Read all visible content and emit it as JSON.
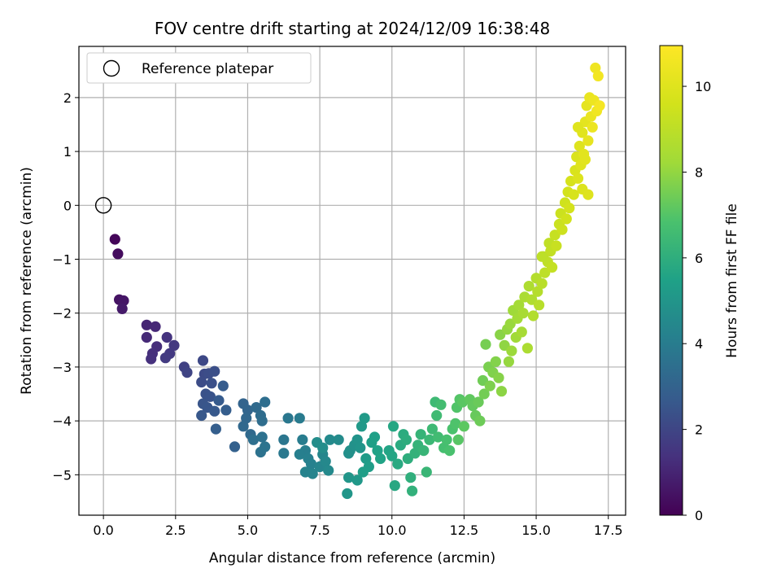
{
  "chart_data": {
    "type": "scatter",
    "title": "FOV centre drift starting at 2024/12/09 16:38:48",
    "xlabel": "Angular distance from reference (arcmin)",
    "ylabel": "Rotation from reference (arcmin)",
    "colorbar_label": "Hours from first FF file",
    "xlim": [
      -0.85,
      18.1
    ],
    "ylim": [
      -5.75,
      2.95
    ],
    "clim": [
      0,
      10.95
    ],
    "x_ticks": [
      0.0,
      2.5,
      5.0,
      7.5,
      10.0,
      12.5,
      15.0,
      17.5
    ],
    "x_tick_labels": [
      "0.0",
      "2.5",
      "5.0",
      "7.5",
      "10.0",
      "12.5",
      "15.0",
      "17.5"
    ],
    "y_ticks": [
      2,
      1,
      0,
      -1,
      -2,
      -3,
      -4,
      -5
    ],
    "y_tick_labels": [
      "2",
      "1",
      "0",
      "−1",
      "−2",
      "−3",
      "−4",
      "−5"
    ],
    "colorbar_ticks": [
      0,
      2,
      4,
      6,
      8,
      10
    ],
    "colorbar_tick_labels": [
      "0",
      "2",
      "4",
      "6",
      "8",
      "10"
    ],
    "colormap": "viridis",
    "grid": true,
    "legend": {
      "location": "top-left",
      "entries": [
        "Reference platepar"
      ]
    },
    "reference_point": {
      "label": "Reference platepar",
      "x": 0.0,
      "y": 0.0,
      "marker": "open-circle",
      "color": "#000000"
    },
    "series": [
      {
        "points": [
          [
            0.4,
            -0.63,
            0.15
          ],
          [
            0.5,
            -0.9,
            0.3
          ],
          [
            0.55,
            -1.75,
            0.5
          ],
          [
            0.7,
            -1.77,
            0.6
          ],
          [
            0.65,
            -1.92,
            0.7
          ],
          [
            1.5,
            -2.22,
            1.0
          ],
          [
            1.8,
            -2.25,
            1.1
          ],
          [
            1.5,
            -2.45,
            1.15
          ],
          [
            1.85,
            -2.62,
            1.25
          ],
          [
            1.7,
            -2.75,
            1.3
          ],
          [
            1.65,
            -2.85,
            1.35
          ],
          [
            2.2,
            -2.45,
            1.45
          ],
          [
            2.45,
            -2.6,
            1.55
          ],
          [
            2.3,
            -2.75,
            1.6
          ],
          [
            2.15,
            -2.83,
            1.65
          ],
          [
            2.8,
            -3.0,
            1.85
          ],
          [
            2.9,
            -3.1,
            1.95
          ],
          [
            3.45,
            -2.88,
            2.1
          ],
          [
            3.5,
            -3.13,
            2.15
          ],
          [
            3.4,
            -3.28,
            2.2
          ],
          [
            3.65,
            -3.12,
            2.25
          ],
          [
            3.85,
            -3.08,
            2.3
          ],
          [
            3.75,
            -3.3,
            2.35
          ],
          [
            3.55,
            -3.5,
            2.4
          ],
          [
            3.7,
            -3.55,
            2.45
          ],
          [
            3.45,
            -3.68,
            2.5
          ],
          [
            3.6,
            -3.75,
            2.55
          ],
          [
            3.4,
            -3.9,
            2.6
          ],
          [
            3.85,
            -3.82,
            2.65
          ],
          [
            4.0,
            -3.62,
            2.7
          ],
          [
            4.15,
            -3.35,
            2.75
          ],
          [
            4.25,
            -3.8,
            2.8
          ],
          [
            3.9,
            -4.15,
            2.85
          ],
          [
            4.55,
            -4.48,
            2.95
          ],
          [
            4.85,
            -3.68,
            3.05
          ],
          [
            5.0,
            -3.8,
            3.1
          ],
          [
            4.95,
            -3.95,
            3.15
          ],
          [
            4.85,
            -4.1,
            3.2
          ],
          [
            5.1,
            -4.25,
            3.25
          ],
          [
            5.3,
            -3.75,
            3.3
          ],
          [
            5.45,
            -3.9,
            3.35
          ],
          [
            5.5,
            -4.0,
            3.4
          ],
          [
            5.6,
            -3.65,
            3.45
          ],
          [
            5.2,
            -4.35,
            3.5
          ],
          [
            5.5,
            -4.3,
            3.55
          ],
          [
            5.45,
            -4.58,
            3.6
          ],
          [
            5.6,
            -4.48,
            3.65
          ],
          [
            6.25,
            -4.35,
            3.75
          ],
          [
            6.4,
            -3.95,
            3.8
          ],
          [
            6.25,
            -4.6,
            3.85
          ],
          [
            6.8,
            -3.95,
            3.95
          ],
          [
            6.9,
            -4.35,
            4.0
          ],
          [
            7.0,
            -4.55,
            4.05
          ],
          [
            6.8,
            -4.62,
            4.1
          ],
          [
            7.1,
            -4.7,
            4.15
          ],
          [
            7.2,
            -4.8,
            4.2
          ],
          [
            7.0,
            -4.95,
            4.25
          ],
          [
            7.25,
            -4.98,
            4.3
          ],
          [
            7.5,
            -4.85,
            4.35
          ],
          [
            7.6,
            -4.62,
            4.4
          ],
          [
            7.7,
            -4.75,
            4.45
          ],
          [
            7.8,
            -4.92,
            4.5
          ],
          [
            7.85,
            -4.35,
            4.55
          ],
          [
            8.15,
            -4.35,
            4.6
          ],
          [
            7.4,
            -4.4,
            4.65
          ],
          [
            7.6,
            -4.5,
            4.7
          ],
          [
            8.5,
            -4.6,
            4.75
          ],
          [
            8.55,
            -4.55,
            4.8
          ],
          [
            8.7,
            -4.45,
            4.85
          ],
          [
            8.8,
            -4.35,
            4.9
          ],
          [
            8.9,
            -4.5,
            4.95
          ],
          [
            8.5,
            -5.05,
            5.0
          ],
          [
            8.45,
            -5.35,
            5.05
          ],
          [
            8.8,
            -5.1,
            5.1
          ],
          [
            8.95,
            -4.1,
            5.15
          ],
          [
            9.05,
            -3.95,
            5.2
          ],
          [
            9.1,
            -4.7,
            5.25
          ],
          [
            9.2,
            -4.85,
            5.3
          ],
          [
            9.0,
            -4.95,
            5.35
          ],
          [
            9.3,
            -4.4,
            5.4
          ],
          [
            9.4,
            -4.3,
            5.45
          ],
          [
            9.5,
            -4.55,
            5.5
          ],
          [
            9.6,
            -4.7,
            5.55
          ],
          [
            9.9,
            -4.55,
            5.6
          ],
          [
            10.0,
            -4.65,
            5.65
          ],
          [
            10.05,
            -4.1,
            5.7
          ],
          [
            10.1,
            -5.2,
            5.75
          ],
          [
            10.2,
            -4.8,
            5.8
          ],
          [
            10.3,
            -4.45,
            5.85
          ],
          [
            10.4,
            -4.25,
            5.9
          ],
          [
            10.5,
            -4.35,
            5.95
          ],
          [
            10.55,
            -4.7,
            6.0
          ],
          [
            10.65,
            -5.05,
            6.05
          ],
          [
            10.7,
            -5.3,
            6.1
          ],
          [
            10.8,
            -4.6,
            6.15
          ],
          [
            10.9,
            -4.45,
            6.2
          ],
          [
            11.0,
            -4.25,
            6.25
          ],
          [
            11.1,
            -4.55,
            6.3
          ],
          [
            11.2,
            -4.95,
            6.35
          ],
          [
            11.3,
            -4.35,
            6.4
          ],
          [
            11.4,
            -4.15,
            6.45
          ],
          [
            11.5,
            -3.65,
            6.5
          ],
          [
            11.55,
            -3.9,
            6.55
          ],
          [
            11.6,
            -4.3,
            6.6
          ],
          [
            11.7,
            -3.7,
            6.65
          ],
          [
            11.8,
            -4.5,
            6.7
          ],
          [
            11.9,
            -4.35,
            6.75
          ],
          [
            12.0,
            -4.55,
            6.8
          ],
          [
            12.1,
            -4.15,
            6.85
          ],
          [
            12.2,
            -4.05,
            6.9
          ],
          [
            12.25,
            -3.75,
            6.95
          ],
          [
            12.35,
            -3.6,
            7.0
          ],
          [
            12.3,
            -4.35,
            7.05
          ],
          [
            12.45,
            -3.65,
            7.1
          ],
          [
            12.5,
            -4.1,
            7.15
          ],
          [
            12.7,
            -3.6,
            7.2
          ],
          [
            12.8,
            -3.72,
            7.25
          ],
          [
            12.9,
            -3.9,
            7.3
          ],
          [
            13.0,
            -3.65,
            7.35
          ],
          [
            13.05,
            -4.0,
            7.4
          ],
          [
            13.15,
            -3.25,
            7.45
          ],
          [
            13.2,
            -3.5,
            7.5
          ],
          [
            13.25,
            -2.58,
            7.55
          ],
          [
            13.35,
            -3.0,
            7.6
          ],
          [
            13.4,
            -3.35,
            7.65
          ],
          [
            13.5,
            -3.1,
            7.7
          ],
          [
            13.6,
            -2.9,
            7.75
          ],
          [
            13.7,
            -3.2,
            7.8
          ],
          [
            13.75,
            -2.4,
            7.85
          ],
          [
            13.8,
            -3.45,
            7.9
          ],
          [
            13.9,
            -2.6,
            7.95
          ],
          [
            14.0,
            -2.3,
            8.0
          ],
          [
            14.05,
            -2.9,
            8.05
          ],
          [
            14.1,
            -2.2,
            8.1
          ],
          [
            14.15,
            -2.7,
            8.15
          ],
          [
            14.2,
            -1.95,
            8.2
          ],
          [
            14.3,
            -2.45,
            8.25
          ],
          [
            14.35,
            -2.1,
            8.3
          ],
          [
            14.4,
            -1.85,
            8.35
          ],
          [
            14.5,
            -2.35,
            8.4
          ],
          [
            14.55,
            -2.0,
            8.45
          ],
          [
            14.6,
            -1.7,
            8.5
          ],
          [
            14.7,
            -2.65,
            8.55
          ],
          [
            14.75,
            -1.5,
            8.6
          ],
          [
            14.85,
            -1.75,
            8.65
          ],
          [
            14.9,
            -2.05,
            8.7
          ],
          [
            15.0,
            -1.35,
            8.75
          ],
          [
            15.05,
            -1.6,
            8.8
          ],
          [
            15.1,
            -1.85,
            8.85
          ],
          [
            15.2,
            -1.45,
            8.9
          ],
          [
            15.25,
            -0.95,
            8.95
          ],
          [
            15.3,
            -1.25,
            9.0
          ],
          [
            15.4,
            -1.05,
            9.05
          ],
          [
            15.45,
            -0.7,
            9.1
          ],
          [
            15.5,
            -0.85,
            9.15
          ],
          [
            15.55,
            -1.15,
            9.2
          ],
          [
            15.65,
            -0.55,
            9.25
          ],
          [
            15.7,
            -0.75,
            9.3
          ],
          [
            15.8,
            -0.35,
            9.35
          ],
          [
            15.85,
            -0.15,
            9.4
          ],
          [
            15.9,
            -0.45,
            9.45
          ],
          [
            16.0,
            0.05,
            9.5
          ],
          [
            16.05,
            -0.25,
            9.55
          ],
          [
            16.1,
            0.25,
            9.6
          ],
          [
            16.15,
            -0.05,
            9.65
          ],
          [
            16.2,
            0.45,
            9.7
          ],
          [
            16.3,
            0.2,
            9.75
          ],
          [
            16.35,
            0.65,
            9.8
          ],
          [
            16.4,
            0.9,
            9.85
          ],
          [
            16.45,
            0.5,
            9.9
          ],
          [
            16.5,
            1.1,
            9.95
          ],
          [
            16.55,
            0.75,
            10.0
          ],
          [
            16.6,
            1.35,
            10.05
          ],
          [
            16.65,
            0.95,
            10.1
          ],
          [
            16.7,
            1.55,
            10.15
          ],
          [
            16.75,
            1.85,
            10.2
          ],
          [
            16.8,
            1.2,
            10.25
          ],
          [
            16.85,
            2.0,
            10.3
          ],
          [
            16.9,
            1.65,
            10.35
          ],
          [
            16.95,
            1.45,
            10.4
          ],
          [
            17.0,
            1.95,
            10.45
          ],
          [
            17.05,
            2.55,
            10.5
          ],
          [
            17.1,
            1.75,
            10.55
          ],
          [
            17.15,
            2.4,
            10.6
          ],
          [
            17.2,
            1.85,
            10.7
          ],
          [
            16.45,
            1.45,
            10.0
          ],
          [
            16.7,
            0.85,
            10.1
          ],
          [
            16.6,
            0.3,
            9.9
          ],
          [
            16.8,
            0.2,
            9.95
          ],
          [
            15.2,
            -0.95,
            9.0
          ]
        ]
      }
    ]
  }
}
